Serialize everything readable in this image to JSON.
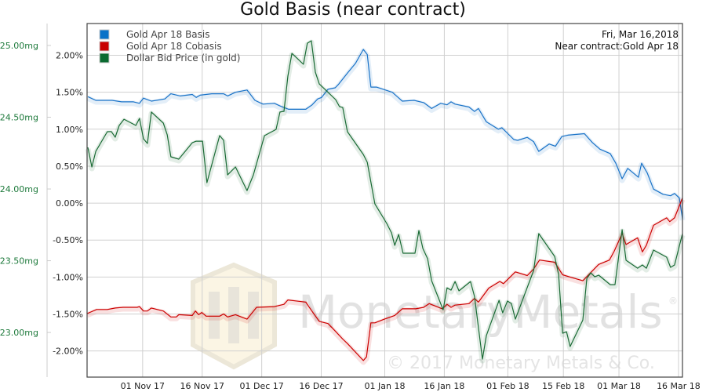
{
  "chart_data": {
    "type": "line",
    "title": "Gold Basis (near contract)",
    "info_lines": [
      "Fri, Mar 16,2018",
      "Near contract:Gold Apr 18"
    ],
    "x_unit": "days since 18 Oct 2017",
    "xlim": [
      0,
      150
    ],
    "xticks": [
      {
        "value": 14,
        "label": "01 Nov 17"
      },
      {
        "value": 29,
        "label": "16 Nov 17"
      },
      {
        "value": 44,
        "label": "01 Dec 17"
      },
      {
        "value": 59,
        "label": "16 Dec 17"
      },
      {
        "value": 75,
        "label": "01 Jan 18"
      },
      {
        "value": 90,
        "label": "16 Jan 18"
      },
      {
        "value": 106,
        "label": "01 Feb 18"
      },
      {
        "value": 120,
        "label": "15 Feb 18"
      },
      {
        "value": 134,
        "label": "01 Mar 18"
      },
      {
        "value": 149,
        "label": "16 Mar 18"
      }
    ],
    "pct_axis": {
      "ylim": [
        -2.354,
        2.43
      ],
      "ticks": [
        {
          "value": 2.0,
          "label": "2.00%"
        },
        {
          "value": 1.5,
          "label": "1.50%"
        },
        {
          "value": 1.0,
          "label": "1.00%"
        },
        {
          "value": 0.5,
          "label": "0.50%"
        },
        {
          "value": 0.0,
          "label": "0.00%"
        },
        {
          "value": -0.5,
          "label": "-0.50%"
        },
        {
          "value": -1.0,
          "label": "-1.00%"
        },
        {
          "value": -1.5,
          "label": "-1.50%"
        },
        {
          "value": -2.0,
          "label": "-2.00%"
        }
      ]
    },
    "mg_axis": {
      "ylim": [
        22.689,
        25.153
      ],
      "ticks": [
        {
          "value": 25.0,
          "label": "25.00mg"
        },
        {
          "value": 24.5,
          "label": "24.50mg"
        },
        {
          "value": 24.0,
          "label": "24.00mg"
        },
        {
          "value": 23.5,
          "label": "23.50mg"
        },
        {
          "value": 23.0,
          "label": "23.00mg"
        }
      ]
    },
    "grid": true,
    "legend_position": "top-left",
    "series": [
      {
        "name": "Gold Apr 18 Basis",
        "color": "#1a73c8",
        "axis": "pct",
        "points": [
          [
            0.2,
            1.44
          ],
          [
            2.2,
            1.39
          ],
          [
            6.3,
            1.39
          ],
          [
            8.7,
            1.37
          ],
          [
            11.7,
            1.37
          ],
          [
            13.2,
            1.35
          ],
          [
            14.2,
            1.42
          ],
          [
            16.2,
            1.38
          ],
          [
            19.6,
            1.41
          ],
          [
            21.1,
            1.48
          ],
          [
            23.5,
            1.45
          ],
          [
            26.5,
            1.47
          ],
          [
            27.5,
            1.43
          ],
          [
            28.5,
            1.46
          ],
          [
            31.4,
            1.48
          ],
          [
            34.4,
            1.48
          ],
          [
            35.4,
            1.45
          ],
          [
            37.4,
            1.5
          ],
          [
            40.3,
            1.53
          ],
          [
            42.3,
            1.39
          ],
          [
            44.3,
            1.34
          ],
          [
            47.2,
            1.35
          ],
          [
            48.8,
            1.31
          ],
          [
            50.8,
            1.27
          ],
          [
            55.1,
            1.27
          ],
          [
            56.7,
            1.33
          ],
          [
            58.1,
            1.41
          ],
          [
            59.1,
            1.43
          ],
          [
            60.7,
            1.54
          ],
          [
            62.5,
            1.56
          ],
          [
            63.4,
            1.61
          ],
          [
            65.6,
            1.76
          ],
          [
            67.6,
            1.89
          ],
          [
            69.6,
            2.08
          ],
          [
            70.6,
            2.01
          ],
          [
            71.5,
            1.57
          ],
          [
            72.9,
            1.57
          ],
          [
            76.9,
            1.5
          ],
          [
            79.4,
            1.38
          ],
          [
            82.4,
            1.39
          ],
          [
            84.8,
            1.36
          ],
          [
            86.8,
            1.28
          ],
          [
            89.1,
            1.35
          ],
          [
            90.7,
            1.33
          ],
          [
            91.7,
            1.37
          ],
          [
            92.7,
            1.34
          ],
          [
            96.2,
            1.3
          ],
          [
            97.6,
            1.24
          ],
          [
            98.6,
            1.28
          ],
          [
            100.6,
            1.1
          ],
          [
            103.6,
            1.0
          ],
          [
            104.5,
            1.02
          ],
          [
            107.5,
            0.86
          ],
          [
            108.5,
            0.85
          ],
          [
            110.9,
            0.89
          ],
          [
            112.5,
            0.83
          ],
          [
            113.8,
            0.7
          ],
          [
            116.4,
            0.8
          ],
          [
            118.0,
            0.77
          ],
          [
            119.6,
            0.9
          ],
          [
            121.1,
            0.92
          ],
          [
            125.3,
            0.94
          ],
          [
            127.3,
            0.82
          ],
          [
            129.2,
            0.73
          ],
          [
            131.8,
            0.67
          ],
          [
            133.2,
            0.54
          ],
          [
            134.8,
            0.33
          ],
          [
            136.2,
            0.47
          ],
          [
            138.9,
            0.35
          ],
          [
            139.7,
            0.54
          ],
          [
            141.1,
            0.41
          ],
          [
            142.7,
            0.19
          ],
          [
            145.1,
            0.12
          ],
          [
            147.0,
            0.1
          ],
          [
            148.0,
            0.13
          ],
          [
            149.2,
            0.07
          ],
          [
            150,
            -0.21
          ]
        ]
      },
      {
        "name": "Gold Apr 18 Cobasis",
        "color": "#cc0000",
        "axis": "pct",
        "points": [
          [
            0,
            -1.495
          ],
          [
            2.4,
            -1.44
          ],
          [
            5.1,
            -1.44
          ],
          [
            7.1,
            -1.42
          ],
          [
            9.1,
            -1.41
          ],
          [
            12.6,
            -1.41
          ],
          [
            13.2,
            -1.4
          ],
          [
            14.2,
            -1.46
          ],
          [
            15.2,
            -1.46
          ],
          [
            16.2,
            -1.42
          ],
          [
            19.2,
            -1.46
          ],
          [
            21.1,
            -1.54
          ],
          [
            22.5,
            -1.54
          ],
          [
            23.1,
            -1.51
          ],
          [
            26.5,
            -1.52
          ],
          [
            27.3,
            -1.46
          ],
          [
            28.1,
            -1.51
          ],
          [
            28.9,
            -1.48
          ],
          [
            30.0,
            -1.53
          ],
          [
            33.4,
            -1.53
          ],
          [
            34.4,
            -1.5
          ],
          [
            35.4,
            -1.54
          ],
          [
            37.4,
            -1.51
          ],
          [
            39.3,
            -1.55
          ],
          [
            40.3,
            -1.57
          ],
          [
            42.7,
            -1.41
          ],
          [
            47.2,
            -1.4
          ],
          [
            49.6,
            -1.37
          ],
          [
            50.6,
            -1.31
          ],
          [
            55.1,
            -1.34
          ],
          [
            56.5,
            -1.45
          ],
          [
            58.5,
            -1.6
          ],
          [
            60.7,
            -1.63
          ],
          [
            62.5,
            -1.73
          ],
          [
            64.4,
            -1.84
          ],
          [
            65.6,
            -1.9
          ],
          [
            69.6,
            -2.13
          ],
          [
            70.4,
            -2.08
          ],
          [
            71.5,
            -1.62
          ],
          [
            72.5,
            -1.62
          ],
          [
            74.9,
            -1.57
          ],
          [
            77.5,
            -1.52
          ],
          [
            79.4,
            -1.43
          ],
          [
            82.8,
            -1.43
          ],
          [
            84.8,
            -1.41
          ],
          [
            86.2,
            -1.36
          ],
          [
            89.5,
            -1.43
          ],
          [
            90.7,
            -1.37
          ],
          [
            91.7,
            -1.41
          ],
          [
            92.7,
            -1.38
          ],
          [
            96.2,
            -1.36
          ],
          [
            97.6,
            -1.29
          ],
          [
            98.6,
            -1.34
          ],
          [
            101.2,
            -1.15
          ],
          [
            104.0,
            -1.06
          ],
          [
            104.9,
            -1.09
          ],
          [
            107.9,
            -0.93
          ],
          [
            110.9,
            -0.98
          ],
          [
            112.5,
            -0.89
          ],
          [
            114.0,
            -0.77
          ],
          [
            117.8,
            -0.8
          ],
          [
            119.8,
            -0.97
          ],
          [
            121.7,
            -1.0
          ],
          [
            124.9,
            -1.05
          ],
          [
            128.9,
            -0.83
          ],
          [
            131.6,
            -0.77
          ],
          [
            132.8,
            -0.65
          ],
          [
            134.8,
            -0.41
          ],
          [
            135.8,
            -0.56
          ],
          [
            138.7,
            -0.47
          ],
          [
            139.9,
            -0.66
          ],
          [
            140.9,
            -0.57
          ],
          [
            142.7,
            -0.3
          ],
          [
            146.0,
            -0.2
          ],
          [
            146.8,
            -0.25
          ],
          [
            148.0,
            -0.2
          ],
          [
            150,
            0.07
          ]
        ]
      },
      {
        "name": "Dollar Bid Price (in gold)",
        "color": "#1a6b35",
        "axis": "mg",
        "points": [
          [
            0.2,
            24.29
          ],
          [
            1.2,
            24.153
          ],
          [
            2.2,
            24.262
          ],
          [
            5.1,
            24.399
          ],
          [
            6.1,
            24.4
          ],
          [
            7.1,
            24.361
          ],
          [
            8.1,
            24.443
          ],
          [
            9.3,
            24.486
          ],
          [
            12.3,
            24.443
          ],
          [
            13.2,
            24.492
          ],
          [
            14.2,
            24.35
          ],
          [
            15.2,
            24.317
          ],
          [
            16.2,
            24.536
          ],
          [
            19.2,
            24.459
          ],
          [
            20.2,
            24.377
          ],
          [
            21.1,
            24.224
          ],
          [
            23.1,
            24.208
          ],
          [
            26.5,
            24.322
          ],
          [
            27.5,
            24.333
          ],
          [
            29.1,
            24.333
          ],
          [
            30.2,
            24.044
          ],
          [
            33.4,
            24.372
          ],
          [
            34.4,
            24.339
          ],
          [
            35.4,
            24.098
          ],
          [
            37.4,
            24.153
          ],
          [
            40.3,
            23.989
          ],
          [
            41.9,
            24.098
          ],
          [
            44.7,
            24.372
          ],
          [
            47.6,
            24.415
          ],
          [
            48.6,
            24.536
          ],
          [
            49.6,
            24.541
          ],
          [
            50.6,
            24.787
          ],
          [
            51.6,
            24.945
          ],
          [
            54.5,
            24.869
          ],
          [
            55.5,
            25.016
          ],
          [
            56.5,
            25.033
          ],
          [
            57.5,
            24.814
          ],
          [
            58.5,
            24.732
          ],
          [
            62.6,
            24.623
          ],
          [
            63.6,
            24.574
          ],
          [
            64.4,
            24.568
          ],
          [
            65.6,
            24.399
          ],
          [
            69.6,
            24.24
          ],
          [
            70.6,
            24.186
          ],
          [
            72.5,
            23.896
          ],
          [
            75.5,
            23.76
          ],
          [
            76.7,
            23.694
          ],
          [
            77.5,
            23.607
          ],
          [
            78.5,
            23.683
          ],
          [
            79.6,
            23.552
          ],
          [
            82.6,
            23.552
          ],
          [
            83.6,
            23.71
          ],
          [
            84.6,
            23.585
          ],
          [
            85.8,
            23.514
          ],
          [
            86.8,
            23.361
          ],
          [
            89.7,
            23.158
          ],
          [
            90.7,
            23.311
          ],
          [
            91.7,
            23.295
          ],
          [
            92.7,
            23.355
          ],
          [
            93.7,
            23.29
          ],
          [
            96.6,
            23.355
          ],
          [
            97.6,
            23.251
          ],
          [
            99.6,
            22.814
          ],
          [
            100.6,
            22.978
          ],
          [
            103.8,
            23.224
          ],
          [
            104.7,
            23.137
          ],
          [
            105.9,
            23.219
          ],
          [
            106.9,
            23.202
          ],
          [
            107.9,
            23.093
          ],
          [
            110.5,
            23.284
          ],
          [
            112.5,
            23.432
          ],
          [
            113.8,
            23.689
          ],
          [
            117.8,
            23.53
          ],
          [
            118.8,
            23.404
          ],
          [
            119.8,
            22.995
          ],
          [
            120.8,
            23.005
          ],
          [
            121.7,
            22.902
          ],
          [
            124.9,
            23.087
          ],
          [
            125.9,
            23.377
          ],
          [
            126.9,
            23.415
          ],
          [
            127.9,
            23.388
          ],
          [
            128.9,
            23.399
          ],
          [
            131.8,
            23.333
          ],
          [
            133.0,
            23.333
          ],
          [
            134.8,
            23.716
          ],
          [
            135.8,
            23.503
          ],
          [
            138.7,
            23.448
          ],
          [
            139.9,
            23.47
          ],
          [
            140.9,
            23.448
          ],
          [
            142.7,
            23.574
          ],
          [
            146.0,
            23.525
          ],
          [
            147.0,
            23.454
          ],
          [
            148.0,
            23.47
          ],
          [
            150,
            23.689
          ]
        ]
      }
    ]
  },
  "watermark": {
    "brand": "MonetaryMetals",
    "registered": "®",
    "copyright": "© 2017 Monetary Metals & Co."
  }
}
